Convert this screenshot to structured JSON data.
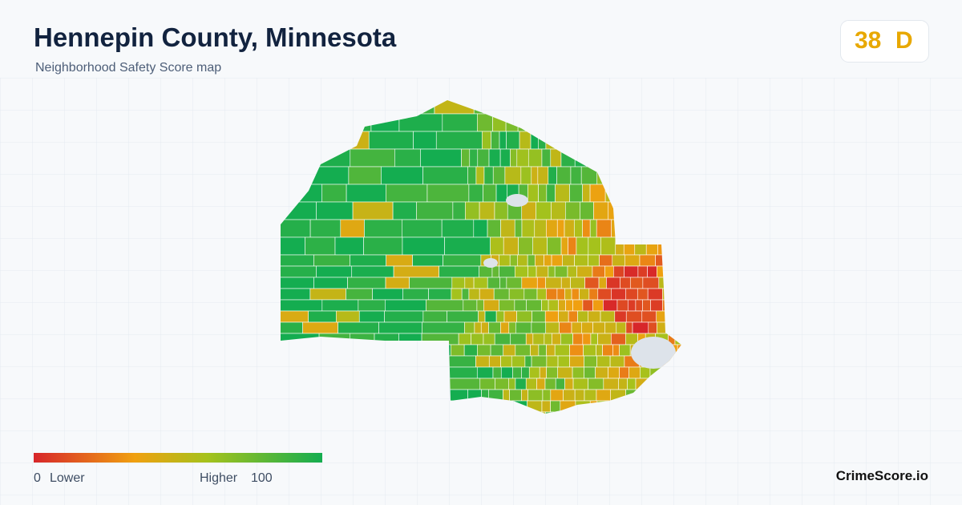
{
  "header": {
    "title": "Hennepin County, Minnesota",
    "subtitle": "Neighborhood Safety Score map"
  },
  "badge": {
    "score": "38",
    "grade": "D"
  },
  "legend": {
    "min": "0",
    "min_label": "Lower",
    "max_label": "Higher",
    "max": "100"
  },
  "footer": {
    "brand": "CrimeScore.io"
  }
}
